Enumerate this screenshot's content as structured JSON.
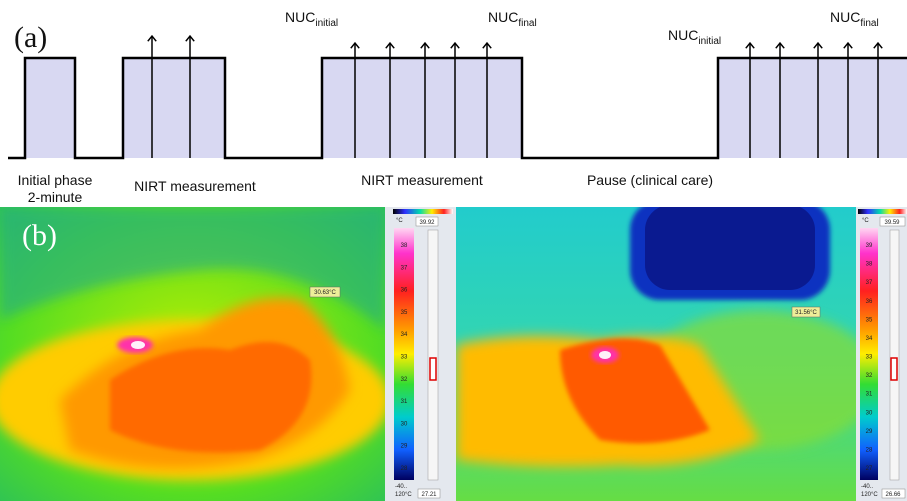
{
  "panel_a": {
    "label": "(a)",
    "nuc_labels": [
      {
        "main": "NUC",
        "sub": "initial"
      },
      {
        "main": "NUC",
        "sub": "final"
      },
      {
        "main": "NUC",
        "sub": "initial"
      },
      {
        "main": "NUC",
        "sub": "final"
      }
    ],
    "phases": [
      "Initial phase",
      "2-minute",
      "NIRT measurement",
      "NIRT measurement",
      "Pause (clinical care)"
    ]
  },
  "panel_b": {
    "label": "(b)",
    "images": [
      {
        "spot_temp": "30.63°C",
        "scale": {
          "unit": "°C",
          "max": "39.92",
          "ticks": [
            "38",
            "37",
            "36",
            "35",
            "34",
            "33",
            "32",
            "31",
            "30",
            "29",
            "28"
          ],
          "range_low": "-40..",
          "range_high": "120°C",
          "min": "27.21"
        }
      },
      {
        "spot_temp": "31.56°C",
        "scale": {
          "unit": "°C",
          "max": "39.59",
          "ticks": [
            "39",
            "38",
            "37",
            "36",
            "35",
            "34",
            "33",
            "32",
            "31",
            "30",
            "29",
            "28",
            "27"
          ],
          "range_low": "-40..",
          "range_high": "120°C",
          "min": "26.66"
        }
      }
    ]
  }
}
